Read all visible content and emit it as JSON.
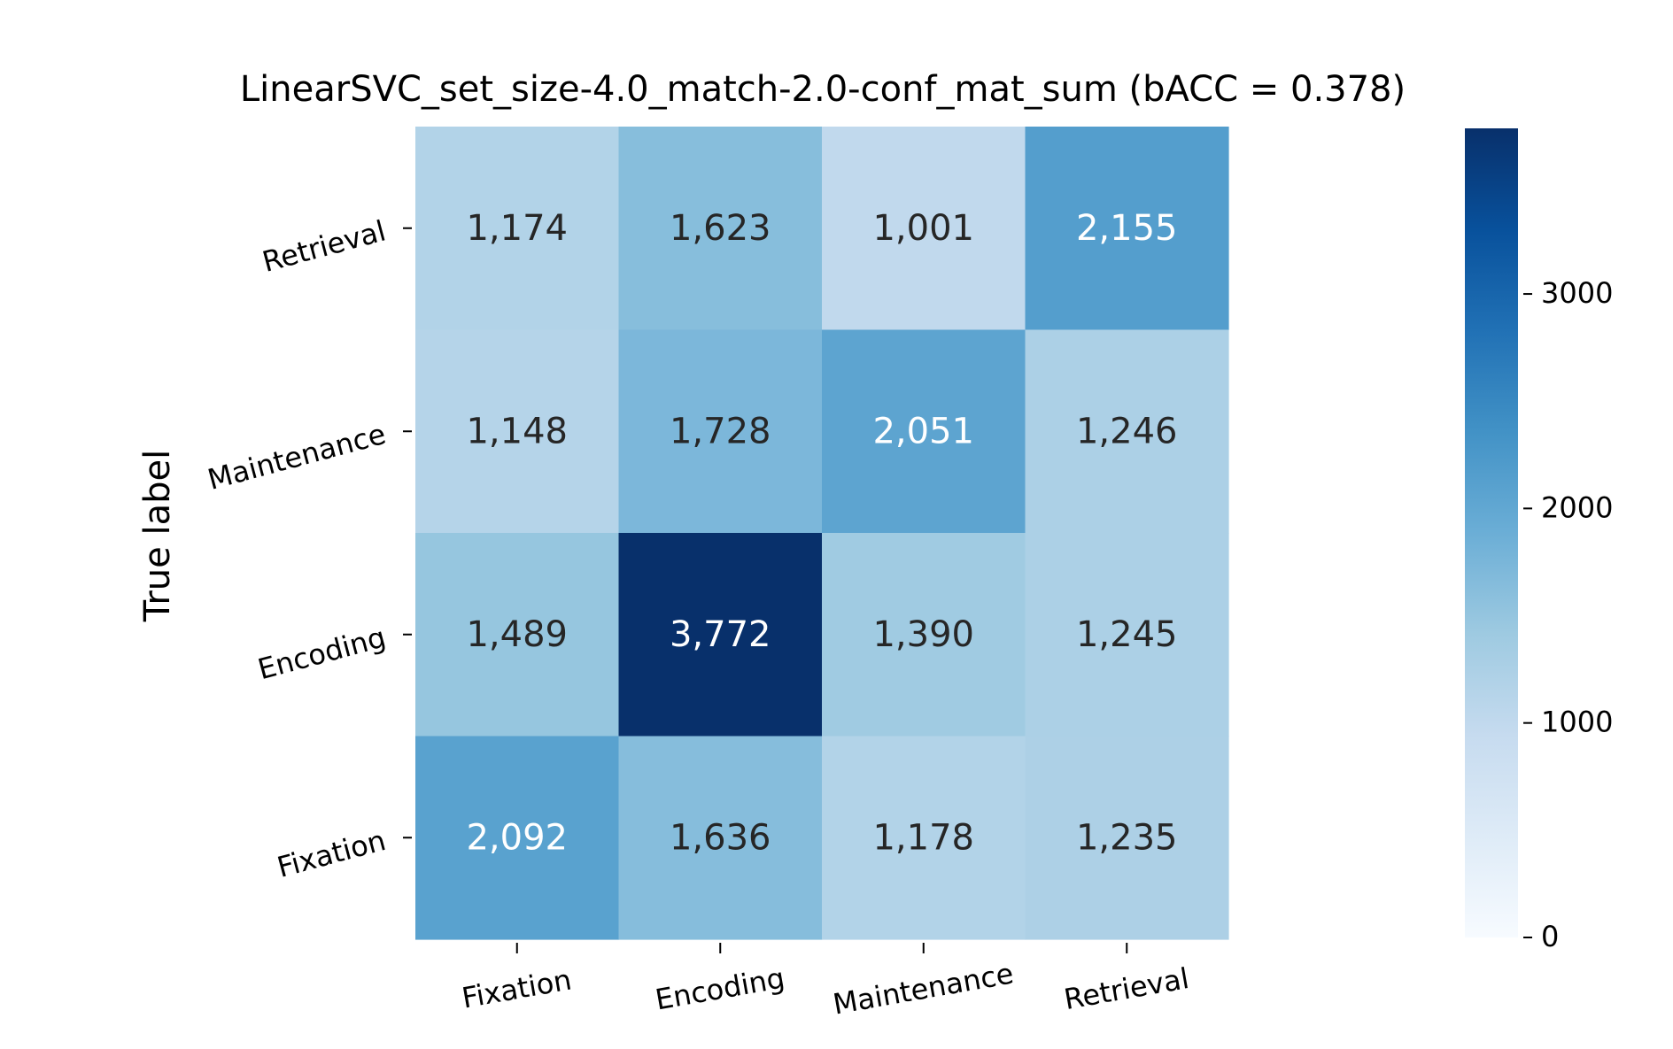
{
  "chart_data": {
    "type": "heatmap",
    "title": "LinearSVC_set_size-4.0_match-2.0-conf_mat_sum (bACC = 0.378)",
    "ylabel": "True label",
    "xlabel": "",
    "x_categories": [
      "Fixation",
      "Encoding",
      "Maintenance",
      "Retrieval"
    ],
    "y_categories": [
      "Retrieval",
      "Maintenance",
      "Encoding",
      "Fixation"
    ],
    "values": [
      [
        1174,
        1623,
        1001,
        2155
      ],
      [
        1148,
        1728,
        2051,
        1246
      ],
      [
        1489,
        3772,
        1390,
        1245
      ],
      [
        2092,
        1636,
        1178,
        1235
      ]
    ],
    "cell_labels": [
      [
        "1,174",
        "1,623",
        "1,001",
        "2,155"
      ],
      [
        "1,148",
        "1,728",
        "2,051",
        "1,246"
      ],
      [
        "1,489",
        "3,772",
        "1,390",
        "1,245"
      ],
      [
        "2,092",
        "1,636",
        "1,178",
        "1,235"
      ]
    ],
    "colormap": "Blues",
    "colorbar": {
      "vmin": 0,
      "vmax": 3772,
      "ticks": [
        0,
        1000,
        2000,
        3000
      ],
      "tick_labels": [
        "0",
        "1000",
        "2000",
        "3000"
      ]
    },
    "grid": false,
    "legend": "colorbar-right"
  }
}
